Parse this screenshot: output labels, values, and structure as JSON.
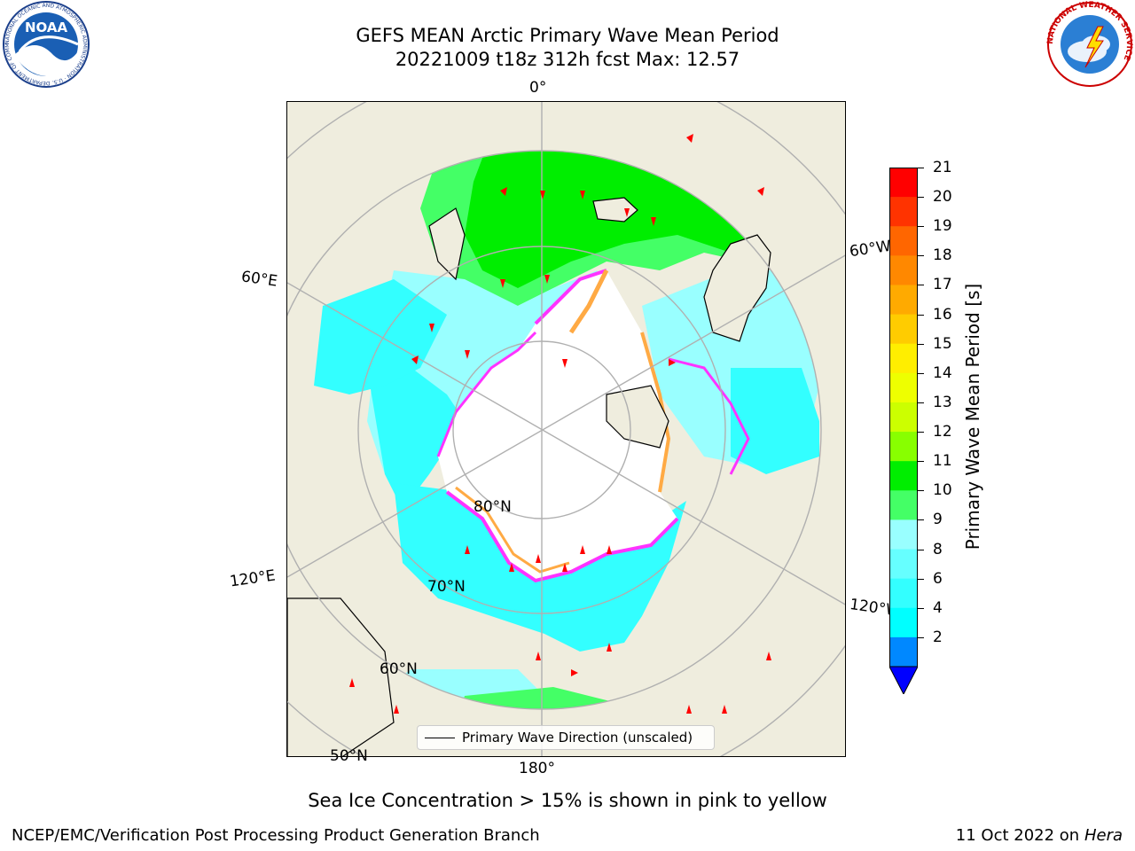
{
  "header": {
    "title_line1": "GEFS MEAN Arctic Primary Wave Mean Period",
    "title_line2": "20221009 t18z 312h fcst   Max: 12.57"
  },
  "logos": {
    "left": {
      "text": "NOAA",
      "ring_text": "NATIONAL OCEANIC AND ATMOSPHERIC ADMINISTRATION · U.S. DEPARTMENT OF COMMERCE"
    },
    "right": {
      "ring_text": "NATIONAL WEATHER SERVICE"
    }
  },
  "map": {
    "meridian_labels": [
      "0°",
      "60°W",
      "120°W",
      "180°",
      "120°E",
      "60°E"
    ],
    "parallel_labels": [
      "80°N",
      "70°N",
      "60°N",
      "50°N"
    ],
    "legend_label": "Primary Wave Direction (unscaled)",
    "colors": {
      "land": "#efedde",
      "ocean_low": "#33ffff",
      "ocean_mid": "#99ffff",
      "ocean_green": "#44ff66",
      "ocean_bright_green": "#00ee00",
      "ice_edge": "#ff33ff",
      "ice_inner": "#ffaa44",
      "arrow": "#ff0000",
      "coast": "#000000",
      "grid": "#b0b0b0"
    }
  },
  "colorbar": {
    "title": "Primary Wave Mean Period [s]",
    "ticks": [
      "21",
      "20",
      "19",
      "18",
      "17",
      "16",
      "15",
      "14",
      "13",
      "12",
      "11",
      "10",
      "9",
      "8",
      "6",
      "4",
      "2"
    ],
    "colors_top_to_bottom": [
      "#ff0000",
      "#ff3300",
      "#ff6600",
      "#ff8800",
      "#ffaa00",
      "#ffcc00",
      "#ffee00",
      "#eeff00",
      "#ccff00",
      "#88ff00",
      "#00ee00",
      "#44ff66",
      "#99ffff",
      "#66ffff",
      "#33ffff",
      "#00ffff",
      "#0088ff"
    ],
    "extend_color": "#0000ff"
  },
  "footer": {
    "note": "Sea Ice Concentration > 15% is shown in pink to yellow",
    "left": "NCEP/EMC/Verification Post Processing Product Generation Branch",
    "right_prefix": "11 Oct 2022 on ",
    "right_system": "Hera"
  }
}
